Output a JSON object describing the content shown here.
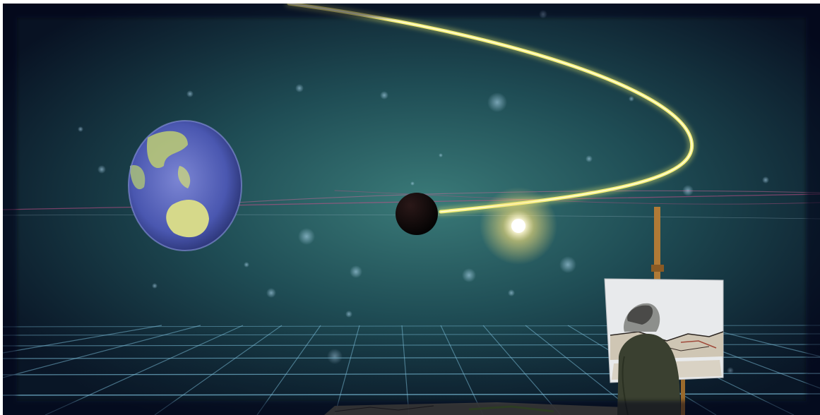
{
  "scene": {
    "background_colors": [
      "#0a1426",
      "#1d4a52",
      "#2e6a6a",
      "#0b1830"
    ],
    "grid_color": "#7fc4e0",
    "orbit_color": "#f4f06a",
    "laser_color": "#c8508a",
    "earth_colors": [
      "#3f4fa8",
      "#6b78c8",
      "#b9c98a"
    ],
    "sun_color": "#fffbe0",
    "easel_color": "#b07a36",
    "painter_coat_color": "#3a4030"
  }
}
